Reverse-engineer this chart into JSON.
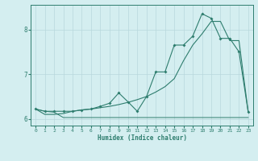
{
  "x": [
    0,
    1,
    2,
    3,
    4,
    5,
    6,
    7,
    8,
    9,
    10,
    11,
    12,
    13,
    14,
    15,
    16,
    17,
    18,
    19,
    20,
    21,
    22,
    23
  ],
  "line1_y": [
    6.22,
    6.17,
    6.15,
    6.03,
    6.03,
    6.03,
    6.03,
    6.03,
    6.03,
    6.03,
    6.03,
    6.03,
    6.03,
    6.03,
    6.03,
    6.03,
    6.03,
    6.03,
    6.03,
    6.03,
    6.03,
    6.03,
    6.03,
    6.03
  ],
  "line2_y": [
    6.22,
    6.17,
    6.17,
    6.17,
    6.17,
    6.2,
    6.22,
    6.28,
    6.35,
    6.58,
    6.38,
    6.17,
    6.5,
    7.05,
    7.05,
    7.65,
    7.65,
    7.85,
    8.35,
    8.25,
    7.8,
    7.8,
    7.5,
    6.15
  ],
  "line3_y": [
    6.22,
    6.1,
    6.1,
    6.12,
    6.17,
    6.2,
    6.22,
    6.25,
    6.28,
    6.32,
    6.37,
    6.43,
    6.5,
    6.6,
    6.72,
    6.9,
    7.3,
    7.65,
    7.9,
    8.18,
    8.18,
    7.75,
    7.75,
    6.15
  ],
  "line_color": "#2e7d6e",
  "bg_color": "#d4eef0",
  "grid_color": "#b8d8dc",
  "xlabel": "Humidex (Indice chaleur)",
  "ylim": [
    5.85,
    8.55
  ],
  "xlim": [
    -0.5,
    23.5
  ],
  "yticks": [
    6,
    7,
    8
  ],
  "xticks": [
    0,
    1,
    2,
    3,
    4,
    5,
    6,
    7,
    8,
    9,
    10,
    11,
    12,
    13,
    14,
    15,
    16,
    17,
    18,
    19,
    20,
    21,
    22,
    23
  ]
}
